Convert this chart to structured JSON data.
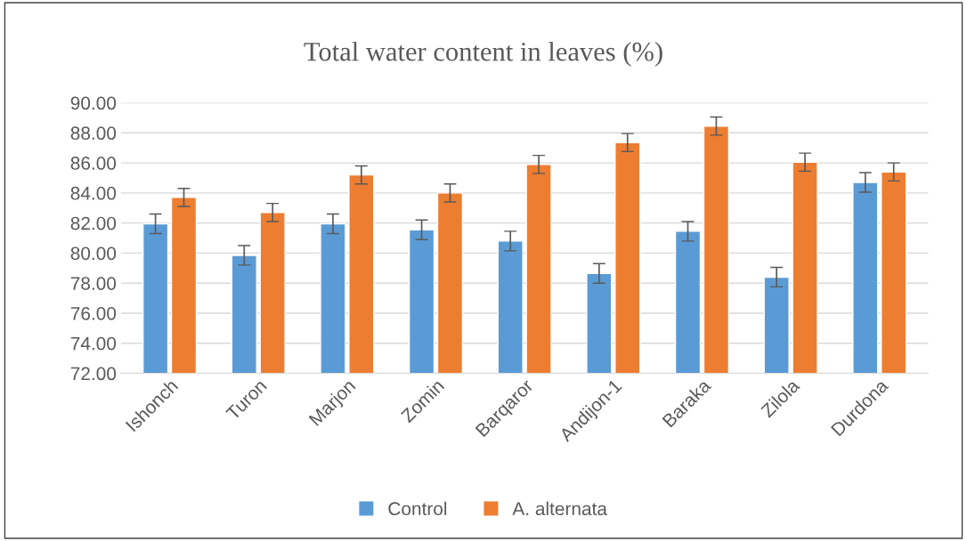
{
  "chart_data": {
    "type": "bar",
    "title": "Total water content in leaves (%)",
    "categories": [
      "Ishonch",
      "Turon",
      "Marjon",
      "Zomin",
      "Barqaror",
      "Andijon-1",
      "Baraka",
      "Zilola",
      "Durdona"
    ],
    "series": [
      {
        "name": "Control",
        "color": "#5b9bd5",
        "values": [
          81.95,
          79.85,
          81.95,
          81.55,
          80.8,
          78.65,
          81.45,
          78.4,
          84.7
        ],
        "errors": [
          0.65,
          0.65,
          0.65,
          0.65,
          0.65,
          0.65,
          0.65,
          0.65,
          0.65
        ]
      },
      {
        "name": "A. alternata",
        "color": "#ed7d31",
        "values": [
          83.7,
          82.7,
          85.2,
          84.0,
          85.9,
          87.35,
          88.45,
          86.05,
          85.4
        ],
        "errors": [
          0.6,
          0.6,
          0.6,
          0.6,
          0.6,
          0.6,
          0.6,
          0.6,
          0.6
        ]
      }
    ],
    "ylim": [
      72,
      90
    ],
    "yticks": [
      {
        "value": 72,
        "label": "72.00"
      },
      {
        "value": 74,
        "label": "74.00"
      },
      {
        "value": 76,
        "label": "76.00"
      },
      {
        "value": 78,
        "label": "78.00"
      },
      {
        "value": 80,
        "label": "80.00"
      },
      {
        "value": 82,
        "label": "82.00"
      },
      {
        "value": 84,
        "label": "84.00"
      },
      {
        "value": 86,
        "label": "86.00"
      },
      {
        "value": 88,
        "label": "88.00"
      },
      {
        "value": 90,
        "label": "90.00"
      }
    ],
    "grid": "y",
    "legend": "bottom"
  }
}
